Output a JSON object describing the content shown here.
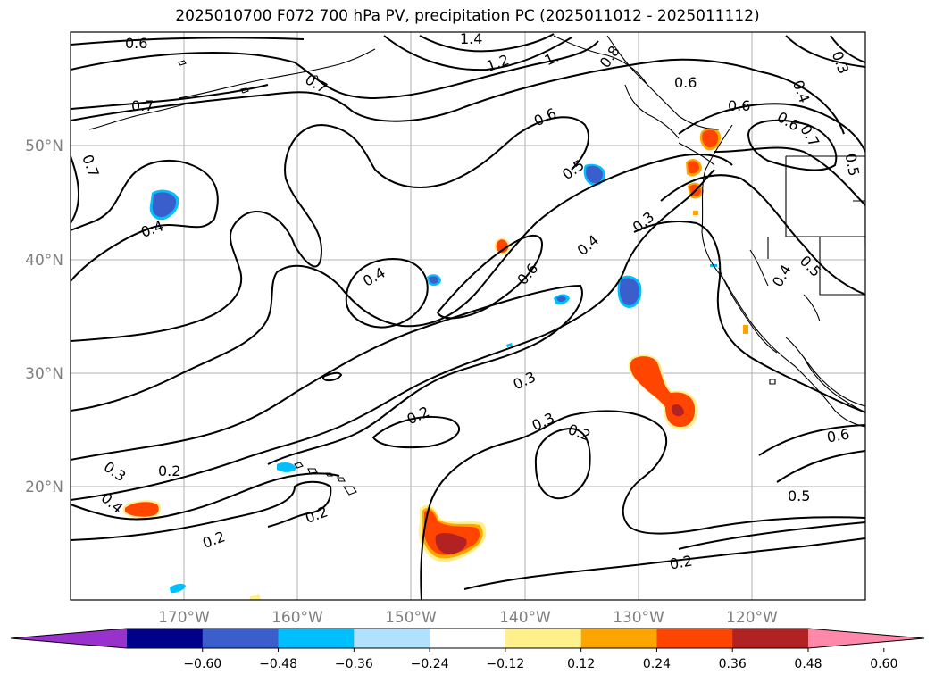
{
  "title": "2025010700 F072 700 hPa PV, precipitation PC (2025011012 - 2025011112)",
  "map": {
    "projection": "PlateCarree",
    "lon_range": [
      -180,
      -110
    ],
    "lat_range": [
      10,
      60
    ],
    "lat_labels": [
      "20°N",
      "30°N",
      "40°N",
      "50°N"
    ],
    "lon_labels": [
      "170°W",
      "160°W",
      "150°W",
      "140°W",
      "130°W",
      "120°W"
    ],
    "gridlines": true
  },
  "contour_labels": [
    "0.6",
    "1.4",
    "1.2",
    "1.",
    "0.8",
    "0.6",
    "0.6",
    "0.7",
    "0.7",
    "0.7",
    "0.6",
    "0.5",
    "0.4",
    "0.4",
    "0.3",
    "0.4",
    "0.6",
    "0.3",
    "0.2",
    "0.3",
    "0.2",
    "0.2",
    "0.3",
    "0.4",
    "0.2",
    "0.2",
    "0.6",
    "0.5",
    "0.2",
    "0.4",
    "0.5",
    "0.3",
    "0.4",
    "0.5",
    "0.6",
    "0.7"
  ],
  "colorbar": {
    "ticks": [
      "−0.60",
      "−0.48",
      "−0.36",
      "−0.24",
      "−0.12",
      "0.12",
      "0.24",
      "0.36",
      "0.48",
      "0.60"
    ],
    "colors": [
      "#9932cc",
      "#00008b",
      "#3a5fcd",
      "#00bfff",
      "#b0e2ff",
      "#ffffff",
      "#fff08c",
      "#ffa500",
      "#ff4500",
      "#b22222",
      "#ff88aa"
    ],
    "extend": "both"
  }
}
